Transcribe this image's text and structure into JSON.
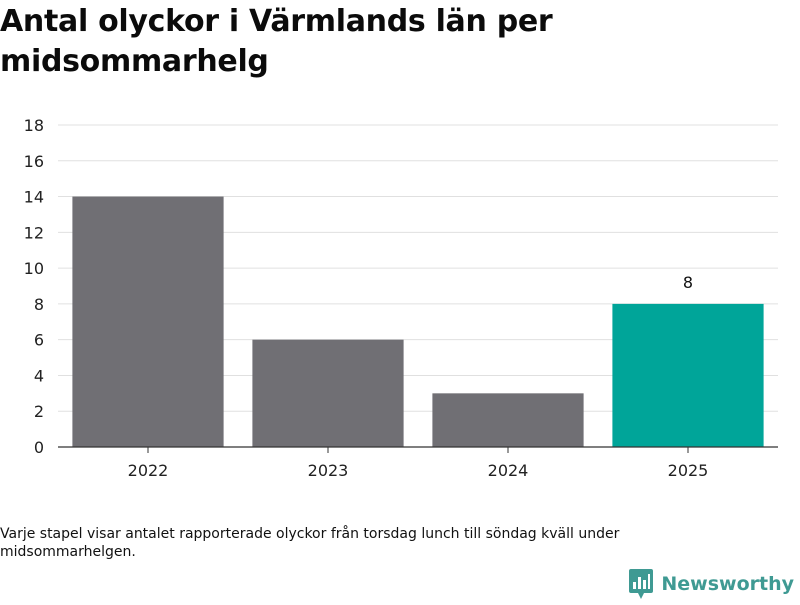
{
  "title": "Antal olyckor i Värmlands län per midsommarhelg",
  "footnote": "Varje stapel visar antalet rapporterade olyckor från torsdag lunch till söndag kväll under midsommarhelgen.",
  "brand": {
    "name": "Newsworthy",
    "logo_icon": "newsworthy-bar-chart-icon",
    "color": "#3f9a93"
  },
  "chart_data": {
    "type": "bar",
    "title": "Antal olyckor i Värmlands län per midsommarhelg",
    "xlabel": "",
    "ylabel": "",
    "categories": [
      "2022",
      "2023",
      "2024",
      "2025"
    ],
    "values": [
      14,
      6,
      3,
      8
    ],
    "ylim": [
      0,
      18
    ],
    "yticks": [
      0,
      2,
      4,
      6,
      8,
      10,
      12,
      14,
      16,
      18
    ],
    "grid": true,
    "legend": "none",
    "colors": {
      "default_bar": "#706f74",
      "highlight_bar": "#00a599",
      "grid": "#e0e0e0",
      "axis": "#333333"
    },
    "highlight_category": "2025",
    "data_labels": [
      {
        "category": "2025",
        "value": 8,
        "text": "8"
      }
    ]
  }
}
